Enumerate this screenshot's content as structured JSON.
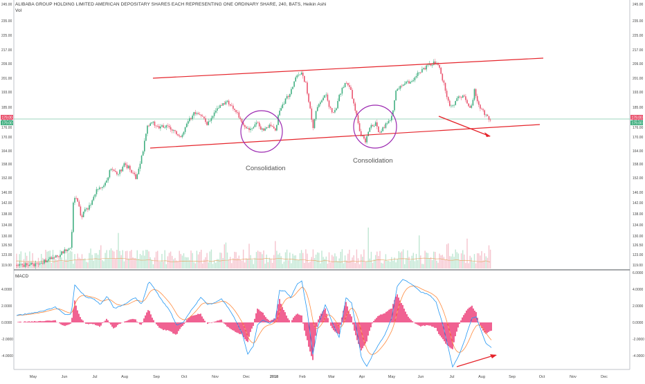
{
  "header": {
    "title": "ALIBABA GROUP HOLDING LIMITED AMERICAN DEPOSITARY SHARES EACH REPRESENTING ONE ORDINARY SHARE, 240, BATS, Heikin Ashi",
    "vol_label": "Vol",
    "macd_label": "MACD"
  },
  "annotations": {
    "consolidation_1": "Consolidation",
    "consolidation_2": "Consolidation"
  },
  "price_badges": {
    "upper_left": "179.00",
    "lower_left": "179.00",
    "upper_right": "179.00",
    "lower_right": "179.00"
  },
  "colors": {
    "up": "#3fae7f",
    "down": "#e9536e",
    "trendline": "#e5242b",
    "ellipse": "#9b27b0",
    "macd_line": "#2196f3",
    "signal_line": "#ff8a3d",
    "histogram": "#e91e63",
    "badge_red": "#e9536e",
    "badge_green": "#3fae7f"
  },
  "chart_data": [
    {
      "type": "candlestick",
      "series_kind": "Heikin Ashi",
      "y_ticks_left": [
        "245.00",
        "235.00",
        "225.00",
        "217.00",
        "209.00",
        "201.00",
        "193.00",
        "185.00",
        "179.00",
        "176.00",
        "170.00",
        "164.00",
        "158.00",
        "152.00",
        "146.00",
        "142.00",
        "138.00",
        "134.00",
        "130.00",
        "126.50",
        "123.00",
        "119.00"
      ],
      "y_ticks_right": [
        "245.00",
        "235.00",
        "225.00",
        "217.00",
        "209.00",
        "201.00",
        "193.00",
        "185.00",
        "179.00",
        "176.00",
        "170.00",
        "164.00",
        "158.00",
        "152.00",
        "146.00",
        "142.00",
        "138.00",
        "134.00",
        "130.00",
        "126.50",
        "123.00",
        "119.00"
      ],
      "x_ticks": [
        "May",
        "Jun",
        "Jul",
        "Aug",
        "Sep",
        "Oct",
        "Nov",
        "Dec",
        "2018",
        "Feb",
        "Mar",
        "Apr",
        "May",
        "Jun",
        "Jul",
        "Aug",
        "Sep",
        "Oct",
        "Nov",
        "Dec"
      ],
      "approx_close_path": [
        [
          "May",
          118
        ],
        [
          "Jun",
          128
        ],
        [
          "Jun",
          140
        ],
        [
          "Jul",
          150
        ],
        [
          "Aug",
          158
        ],
        [
          "Sep",
          175
        ],
        [
          "Oct",
          183
        ],
        [
          "Nov",
          188
        ],
        [
          "Dec",
          172
        ],
        [
          "Dec",
          178
        ],
        [
          "2018",
          180
        ],
        [
          "Feb",
          203
        ],
        [
          "Feb",
          172
        ],
        [
          "Mar",
          196
        ],
        [
          "Apr",
          180
        ],
        [
          "Apr",
          168
        ],
        [
          "May",
          180
        ],
        [
          "May",
          194
        ],
        [
          "Jun",
          207
        ],
        [
          "Jun",
          209
        ],
        [
          "Jul",
          184
        ],
        [
          "Jul",
          193
        ],
        [
          "Aug",
          186
        ],
        [
          "Aug",
          179
        ]
      ],
      "trendlines": [
        {
          "name": "upper-channel",
          "from": [
            "Aug",
            201
          ],
          "to": [
            "Sep",
            209
          ]
        },
        {
          "name": "lower-channel",
          "from": [
            "Aug",
            166
          ],
          "to": [
            "Sep",
            176
          ]
        }
      ]
    },
    {
      "type": "line",
      "name": "MACD",
      "y_ticks_left": [
        "4.0000",
        "2.0000",
        "0.0000",
        "-2.0000",
        "-4.0000"
      ],
      "y_ticks_right": [
        "6.0000",
        "4.0000",
        "2.0000",
        "0.0000",
        "-2.0000",
        "-4.0000"
      ],
      "ylim": [
        -6.5,
        6.0
      ]
    }
  ]
}
